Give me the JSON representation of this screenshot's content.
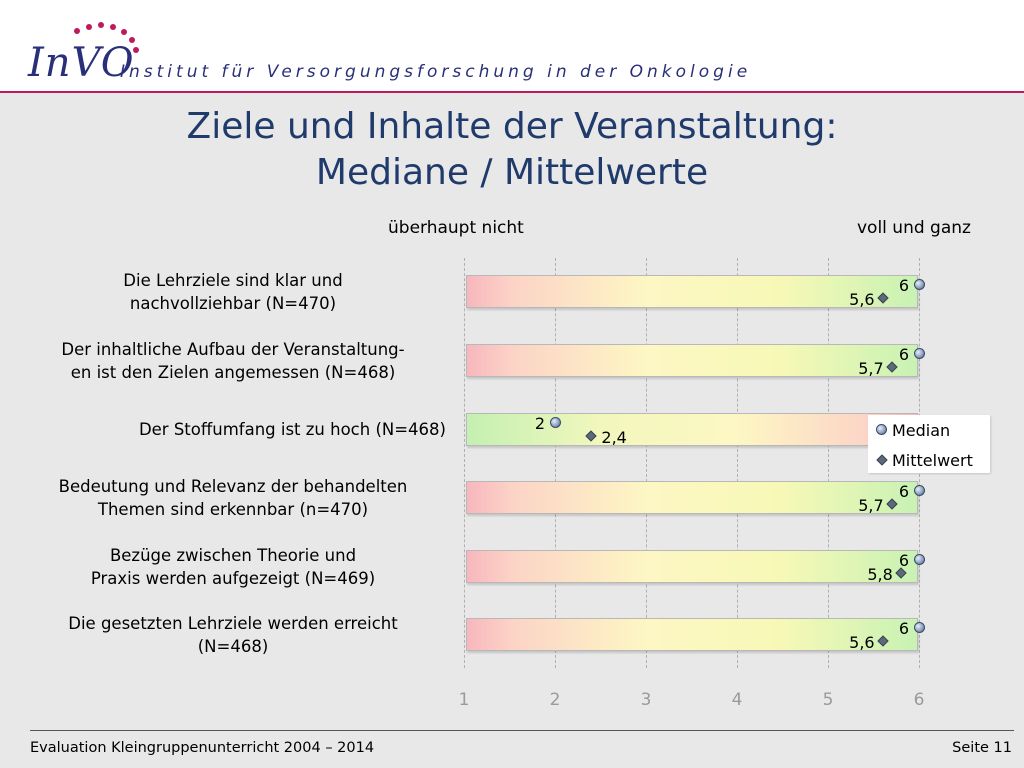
{
  "header": {
    "logo_text": "InVO",
    "institute": "Institut für Versorgungsforschung in der Onkologie"
  },
  "slide": {
    "title_line1": "Ziele und Inhalte der Veranstaltung:",
    "title_line2": "Mediane / Mittelwerte"
  },
  "scale": {
    "left_label": "überhaupt nicht",
    "right_label": "voll und ganz"
  },
  "legend": {
    "median": "Median",
    "mean": "Mittelwert"
  },
  "footer": {
    "left": "Evaluation Kleingruppenunterricht 2004 – 2014",
    "right": "Seite 11"
  },
  "colors": {
    "title": "#1f3a6b",
    "accent_rule": "#c2185b",
    "tick_labels": "#9a9a9a"
  },
  "chart_data": {
    "type": "scatter",
    "xlim": [
      1,
      6
    ],
    "x_ticks": [
      "1",
      "2",
      "3",
      "4",
      "5",
      "6"
    ],
    "grid": true,
    "legend_position": "right",
    "series": [
      {
        "name": "Median"
      },
      {
        "name": "Mittelwert"
      }
    ],
    "rows": [
      {
        "label_line1": "Die Lehrziele sind klar und",
        "label_line2": "nachvollziehbar (N=470)",
        "median": 6,
        "median_label": "6",
        "mean": 5.6,
        "mean_label": "5,6",
        "scale_direction": "positive"
      },
      {
        "label_line1": "Der inhaltliche Aufbau der Veranstaltung-",
        "label_line2": "en ist den Zielen angemessen (N=468)",
        "median": 6,
        "median_label": "6",
        "mean": 5.7,
        "mean_label": "5,7",
        "scale_direction": "positive"
      },
      {
        "label_line1": "Der Stoffumfang ist zu hoch (N=468)",
        "label_line2": "",
        "median": 2,
        "median_label": "2",
        "mean": 2.4,
        "mean_label": "2,4",
        "scale_direction": "negative"
      },
      {
        "label_line1": "Bedeutung und Relevanz der behandelten",
        "label_line2": "Themen sind erkennbar (n=470)",
        "median": 6,
        "median_label": "6",
        "mean": 5.7,
        "mean_label": "5,7",
        "scale_direction": "positive"
      },
      {
        "label_line1": "Bezüge zwischen Theorie und",
        "label_line2": "Praxis werden aufgezeigt (N=469)",
        "median": 6,
        "median_label": "6",
        "mean": 5.8,
        "mean_label": "5,8",
        "scale_direction": "positive"
      },
      {
        "label_line1": "Die gesetzten Lehrziele werden erreicht",
        "label_line2": "(N=468)",
        "median": 6,
        "median_label": "6",
        "mean": 5.6,
        "mean_label": "5,6",
        "scale_direction": "positive"
      }
    ]
  }
}
